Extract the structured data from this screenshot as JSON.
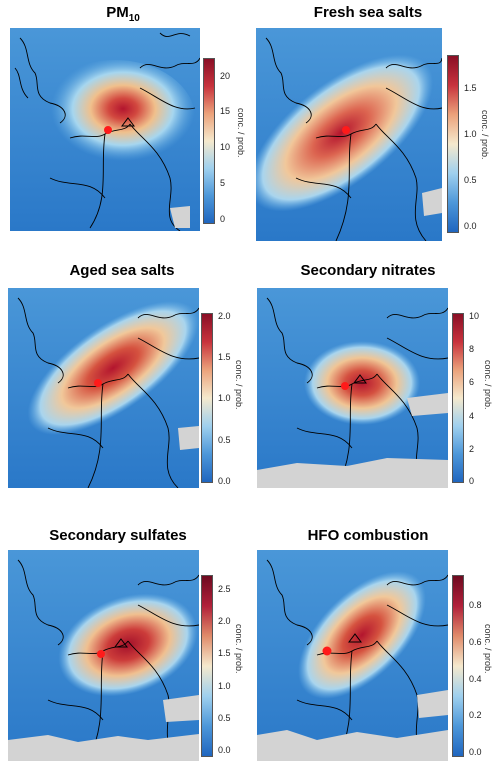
{
  "colorbar_label": "conc. / prob.",
  "panels": [
    {
      "title_main": "PM",
      "title_sub": "10",
      "ticks": [
        "20",
        "15",
        "10",
        "5",
        "0"
      ]
    },
    {
      "title_main": "Fresh sea salts",
      "title_sub": "",
      "ticks": [
        "1.5",
        "1.0",
        "0.5",
        "0.0"
      ]
    },
    {
      "title_main": "Aged sea salts",
      "title_sub": "",
      "ticks": [
        "2.0",
        "1.5",
        "1.0",
        "0.5",
        "0.0"
      ]
    },
    {
      "title_main": "Secondary nitrates",
      "title_sub": "",
      "ticks": [
        "10",
        "8",
        "6",
        "4",
        "2",
        "0"
      ]
    },
    {
      "title_main": "Secondary sulfates",
      "title_sub": "",
      "ticks": [
        "2.5",
        "2.0",
        "1.5",
        "1.0",
        "0.5",
        "0.0"
      ]
    },
    {
      "title_main": "HFO combustion",
      "title_sub": "",
      "ticks": [
        "0.8",
        "0.6",
        "0.4",
        "0.2",
        "0.0"
      ]
    }
  ],
  "colors": {
    "low": "#1f6fc1",
    "mid_low": "#6fb4e6",
    "mid": "#f6e7c6",
    "mid_high": "#e8906a",
    "high": "#b3152e",
    "nodata": "#d3d3d3",
    "receptor": "#ff1a1a"
  }
}
